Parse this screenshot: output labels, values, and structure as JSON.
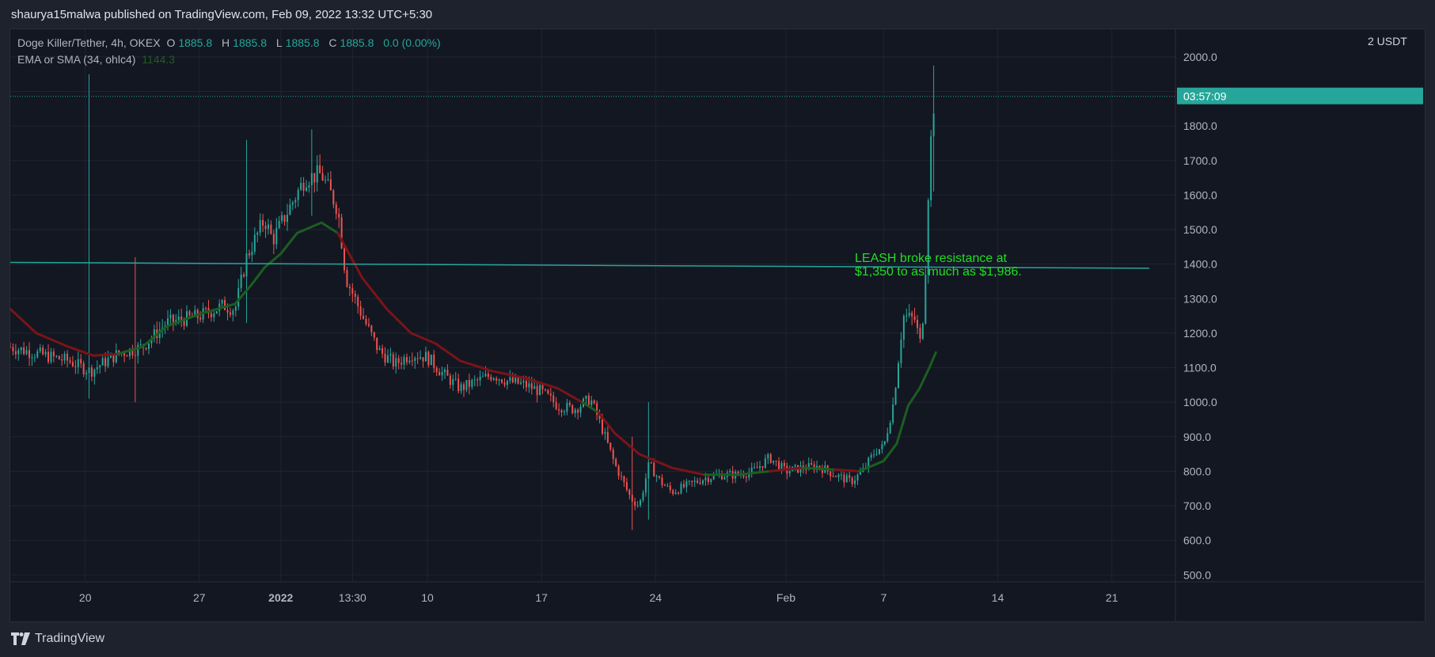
{
  "header": {
    "published_by": "shaurya15malwa published on TradingView.com, Feb 09, 2022 13:32 UTC+5:30"
  },
  "legend": {
    "symbol": "Doge Killer/Tether, 4h, OKEX",
    "o_label": "O",
    "o_value": "1885.8",
    "h_label": "H",
    "h_value": "1885.8",
    "l_label": "L",
    "l_value": "1885.8",
    "c_label": "C",
    "c_value": "1885.8",
    "change": "0.0 (0.00%)",
    "indicator_label": "EMA or SMA (34, ohlc4)",
    "indicator_value": "1144.3"
  },
  "scale_badge": "2 USDT",
  "price_label": {
    "value": "1885.8",
    "time": "03:57:09"
  },
  "annotation": {
    "line1": "LEASH broke resistance at",
    "line2": "$1,350 to as much as $1,986."
  },
  "footer": {
    "brand": "TradingView"
  },
  "colors": {
    "background": "#131722",
    "up": "#26a69a",
    "down": "#ef5350",
    "ema_below": "#1b5e20",
    "ema_above": "#7b1418",
    "resistance": "#26a69a",
    "annotation": "#22dd22"
  },
  "chart_data": {
    "type": "candlestick",
    "timeframe": "4h",
    "ylim": [
      480,
      2080
    ],
    "y_ticks": [
      500,
      600,
      700,
      800,
      900,
      1000,
      1100,
      1200,
      1300,
      1400,
      1500,
      1600,
      1700,
      1800,
      1900,
      2000
    ],
    "x_ticks": [
      {
        "label": "20",
        "day": 5
      },
      {
        "label": "27",
        "day": 12
      },
      {
        "label": "2022",
        "day": 17
      },
      {
        "label": "13:30",
        "day": 21.4
      },
      {
        "label": "10",
        "day": 26
      },
      {
        "label": "17",
        "day": 33
      },
      {
        "label": "24",
        "day": 40
      },
      {
        "label": "Feb",
        "day": 48
      },
      {
        "label": "7",
        "day": 54
      },
      {
        "label": "14",
        "day": 61
      },
      {
        "label": "21",
        "day": 68
      }
    ],
    "x_day_range": [
      0.4,
      71.9
    ],
    "price_path": [
      [
        0.4,
        1160
      ],
      [
        3,
        1130
      ],
      [
        4,
        1120
      ],
      [
        5.3,
        1090
      ],
      [
        7,
        1140
      ],
      [
        8.5,
        1160
      ],
      [
        10,
        1230
      ],
      [
        12,
        1250
      ],
      [
        13.5,
        1280
      ],
      [
        14.2,
        1270
      ],
      [
        14.9,
        1420
      ],
      [
        16,
        1530
      ],
      [
        16.5,
        1470
      ],
      [
        17.5,
        1560
      ],
      [
        18.5,
        1650
      ],
      [
        19.5,
        1660
      ],
      [
        20.5,
        1560
      ],
      [
        21,
        1360
      ],
      [
        22,
        1250
      ],
      [
        23,
        1150
      ],
      [
        24,
        1110
      ],
      [
        25,
        1140
      ],
      [
        26,
        1130
      ],
      [
        27,
        1080
      ],
      [
        28,
        1040
      ],
      [
        29,
        1060
      ],
      [
        30,
        1080
      ],
      [
        31,
        1060
      ],
      [
        32,
        1050
      ],
      [
        33,
        1030
      ],
      [
        34,
        990
      ],
      [
        35,
        980
      ],
      [
        36,
        1010
      ],
      [
        36.6,
        940
      ],
      [
        37.5,
        820
      ],
      [
        38.5,
        720
      ],
      [
        39,
        700
      ],
      [
        39.6,
        820
      ],
      [
        40.3,
        770
      ],
      [
        41,
        740
      ],
      [
        42,
        760
      ],
      [
        43,
        780
      ],
      [
        44,
        790
      ],
      [
        45,
        790
      ],
      [
        46,
        800
      ],
      [
        47,
        840
      ],
      [
        48,
        800
      ],
      [
        49,
        810
      ],
      [
        50,
        815
      ],
      [
        51,
        790
      ],
      [
        52,
        770
      ],
      [
        52.7,
        800
      ],
      [
        53.5,
        860
      ],
      [
        54,
        870
      ],
      [
        54.6,
        1000
      ],
      [
        55.2,
        1250
      ],
      [
        55.9,
        1240
      ],
      [
        56.3,
        1160
      ],
      [
        56.6,
        1420
      ],
      [
        56.8,
        1700
      ],
      [
        57.1,
        1880
      ]
    ],
    "notable_wicks": [
      {
        "day": 5.3,
        "high": 1950,
        "low": 1010
      },
      {
        "day": 8.1,
        "high": 1420,
        "low": 1000
      },
      {
        "day": 14.9,
        "high": 1760,
        "low": 1230
      },
      {
        "day": 18.9,
        "high": 1790,
        "low": 1540
      },
      {
        "day": 38.5,
        "high": 900,
        "low": 630
      },
      {
        "day": 39.6,
        "high": 1000,
        "low": 660
      },
      {
        "day": 57.1,
        "high": 1975,
        "low": 1610
      }
    ],
    "ema_path": [
      [
        0.4,
        1270
      ],
      [
        2,
        1200
      ],
      [
        4,
        1160
      ],
      [
        5.5,
        1135
      ],
      [
        7,
        1140
      ],
      [
        8.5,
        1160
      ],
      [
        10,
        1220
      ],
      [
        12,
        1255
      ],
      [
        14.2,
        1285
      ],
      [
        15.2,
        1340
      ],
      [
        16,
        1390
      ],
      [
        17,
        1430
      ],
      [
        18,
        1490
      ],
      [
        19.5,
        1520
      ],
      [
        20.5,
        1490
      ],
      [
        22,
        1360
      ],
      [
        23.5,
        1270
      ],
      [
        25,
        1200
      ],
      [
        26.5,
        1170
      ],
      [
        28,
        1120
      ],
      [
        30,
        1090
      ],
      [
        32,
        1070
      ],
      [
        34,
        1040
      ],
      [
        35.5,
        1000
      ],
      [
        36.5,
        970
      ],
      [
        37.5,
        910
      ],
      [
        39,
        850
      ],
      [
        41,
        810
      ],
      [
        43,
        790
      ],
      [
        45,
        790
      ],
      [
        47,
        800
      ],
      [
        49,
        810
      ],
      [
        51,
        805
      ],
      [
        52.5,
        800
      ],
      [
        54,
        830
      ],
      [
        54.8,
        880
      ],
      [
        55.5,
        990
      ],
      [
        56.2,
        1040
      ],
      [
        56.8,
        1100
      ],
      [
        57.2,
        1144
      ]
    ],
    "resistance_line": {
      "start": [
        0.4,
        1405
      ],
      "end": [
        70.3,
        1388
      ]
    },
    "last_price": 1885.8,
    "series": [
      {
        "name": "Doge Killer/Tether, 4h, OKEX",
        "ohlc_last": {
          "open": 1885.8,
          "high": 1885.8,
          "low": 1885.8,
          "close": 1885.8
        }
      },
      {
        "name": "EMA or SMA (34, ohlc4)",
        "last": 1144.3
      }
    ]
  }
}
